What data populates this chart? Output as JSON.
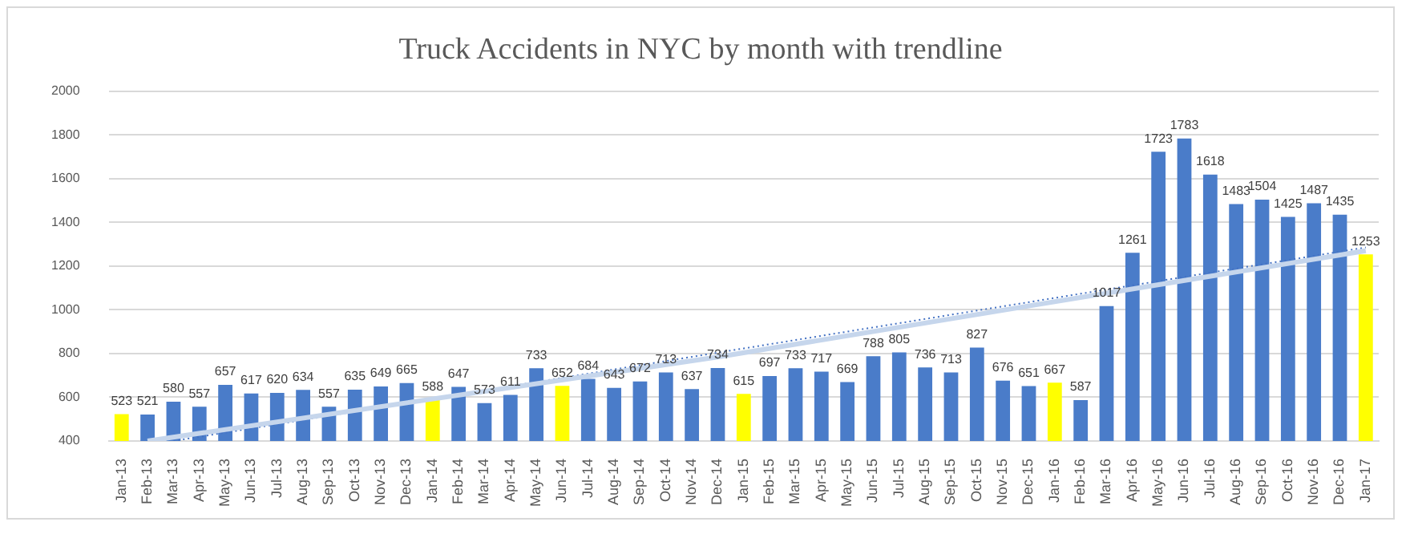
{
  "chart_data": {
    "type": "bar",
    "title": "Truck Accidents in NYC by month with trendline",
    "categories": [
      "Jan-13",
      "Feb-13",
      "Mar-13",
      "Apr-13",
      "May-13",
      "Jun-13",
      "Jul-13",
      "Aug-13",
      "Sep-13",
      "Oct-13",
      "Nov-13",
      "Dec-13",
      "Jan-14",
      "Feb-14",
      "Mar-14",
      "Apr-14",
      "May-14",
      "Jun-14",
      "Jul-14",
      "Aug-14",
      "Sep-14",
      "Oct-14",
      "Nov-14",
      "Dec-14",
      "Jan-15",
      "Feb-15",
      "Mar-15",
      "Apr-15",
      "May-15",
      "Jun-15",
      "Jul-15",
      "Aug-15",
      "Sep-15",
      "Oct-15",
      "Nov-15",
      "Dec-15",
      "Jan-16",
      "Feb-16",
      "Mar-16",
      "Apr-16",
      "May-16",
      "Jun-16",
      "Jul-16",
      "Aug-16",
      "Sep-16",
      "Oct-16",
      "Nov-16",
      "Dec-16",
      "Jan-17"
    ],
    "series": [
      {
        "colors": [
          "#ffff00",
          "#4a7cc9",
          "#4a7cc9",
          "#4a7cc9",
          "#4a7cc9",
          "#4a7cc9",
          "#4a7cc9",
          "#4a7cc9",
          "#4a7cc9",
          "#4a7cc9",
          "#4a7cc9",
          "#4a7cc9",
          "#ffff00",
          "#4a7cc9",
          "#4a7cc9",
          "#4a7cc9",
          "#4a7cc9",
          "#ffff00",
          "#4a7cc9",
          "#4a7cc9",
          "#4a7cc9",
          "#4a7cc9",
          "#4a7cc9",
          "#4a7cc9",
          "#ffff00",
          "#4a7cc9",
          "#4a7cc9",
          "#4a7cc9",
          "#4a7cc9",
          "#4a7cc9",
          "#4a7cc9",
          "#4a7cc9",
          "#4a7cc9",
          "#4a7cc9",
          "#4a7cc9",
          "#4a7cc9",
          "#ffff00",
          "#4a7cc9",
          "#4a7cc9",
          "#4a7cc9",
          "#4a7cc9",
          "#4a7cc9",
          "#4a7cc9",
          "#4a7cc9",
          "#4a7cc9",
          "#4a7cc9",
          "#4a7cc9",
          "#4a7cc9",
          "#ffff00"
        ],
        "values": [
          523,
          521,
          580,
          557,
          657,
          617,
          620,
          634,
          557,
          635,
          649,
          665,
          588,
          647,
          573,
          611,
          733,
          652,
          684,
          643,
          672,
          713,
          637,
          734,
          615,
          697,
          733,
          717,
          669,
          788,
          805,
          736,
          713,
          827,
          676,
          651,
          667,
          587,
          1017,
          1261,
          1723,
          1783,
          1618,
          1483,
          1504,
          1425,
          1487,
          1435,
          1253
        ],
        "value_labels": [
          "523",
          "521",
          "580",
          "557",
          "657",
          "617",
          "620",
          "634",
          "557",
          "635",
          "649",
          "665",
          "588",
          "647",
          "573",
          "611",
          "733",
          "652",
          "684",
          "643",
          "672",
          "713",
          "637",
          "734",
          "615",
          "697",
          "733",
          "717",
          "669",
          "788",
          "805",
          "736",
          "713",
          "827",
          "676",
          "651",
          "667",
          "587",
          "1017",
          "1261",
          "1723",
          "1783",
          "1618",
          "1483",
          "1504",
          "1425",
          "1487",
          "1435",
          "1253"
        ]
      },
      {
        "type": "line",
        "color": "#c6d6ec",
        "line_style": "solid",
        "values": [
          null,
          400,
          null,
          null,
          null,
          null,
          null,
          null,
          null,
          null,
          null,
          null,
          null,
          null,
          null,
          null,
          null,
          null,
          null,
          null,
          null,
          null,
          null,
          784,
          null,
          null,
          null,
          null,
          null,
          null,
          null,
          null,
          null,
          null,
          null,
          null,
          null,
          null,
          null,
          null,
          null,
          null,
          null,
          null,
          null,
          null,
          null,
          null,
          1270
        ]
      },
      {
        "type": "line",
        "color": "#4472c4",
        "line_style": "dotted",
        "values": [
          null,
          null,
          400,
          null,
          null,
          null,
          null,
          null,
          null,
          null,
          null,
          null,
          null,
          null,
          null,
          null,
          null,
          null,
          null,
          null,
          null,
          null,
          null,
          null,
          null,
          null,
          null,
          null,
          null,
          null,
          null,
          null,
          null,
          null,
          null,
          null,
          null,
          null,
          null,
          null,
          null,
          null,
          null,
          null,
          null,
          null,
          null,
          null,
          1285
        ]
      }
    ],
    "ylim": [
      400,
      2000
    ],
    "yticks": [
      400,
      600,
      800,
      1000,
      1200,
      1400,
      1600,
      1800,
      2000
    ],
    "grid": "y",
    "legend": false,
    "marker": "none"
  }
}
